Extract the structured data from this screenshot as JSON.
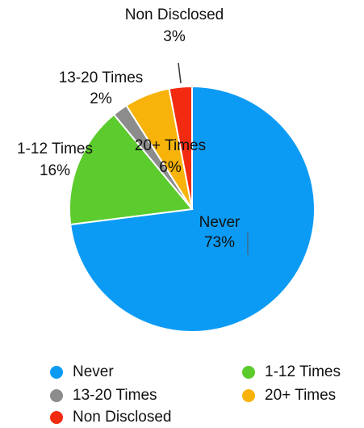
{
  "chart_data": {
    "type": "pie",
    "slices": [
      {
        "label": "Never",
        "value": 73,
        "pct_text": "73%",
        "color": "#0C9BF4"
      },
      {
        "label": "1-12 Times",
        "value": 16,
        "pct_text": "16%",
        "color": "#5CCB2D"
      },
      {
        "label": "13-20 Times",
        "value": 2,
        "pct_text": "2%",
        "color": "#8C8C8C"
      },
      {
        "label": "20+ Times",
        "value": 6,
        "pct_text": "6%",
        "color": "#F7B30A"
      },
      {
        "label": "Non Disclosed",
        "value": 3,
        "pct_text": "3%",
        "color": "#F22B10"
      }
    ],
    "legend": {
      "placement": "bottom",
      "entries": [
        {
          "label": "Never",
          "color": "#0C9BF4"
        },
        {
          "label": "1-12 Times",
          "color": "#5CCB2D"
        },
        {
          "label": "13-20 Times",
          "color": "#8C8C8C"
        },
        {
          "label": "20+ Times",
          "color": "#F7B30A"
        },
        {
          "label": "Non Disclosed",
          "color": "#F22B10"
        }
      ]
    }
  }
}
